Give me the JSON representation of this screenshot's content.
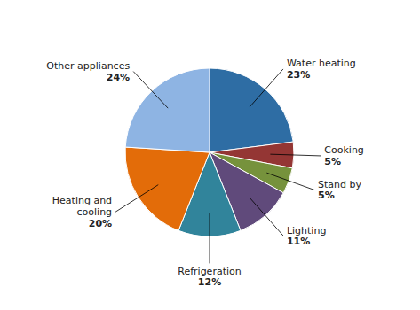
{
  "chart_data": {
    "type": "pie",
    "categories": [
      "Water heating",
      "Cooking",
      "Stand by",
      "Lighting",
      "Refrigeration",
      "Heating and\ncooling",
      "Other appliances"
    ],
    "values": [
      23,
      5,
      5,
      11,
      12,
      20,
      24
    ],
    "value_labels": [
      "23%",
      "5%",
      "5%",
      "11%",
      "12%",
      "20%",
      "24%"
    ],
    "colors": [
      "#2E6DA4",
      "#943634",
      "#76923C",
      "#604A7B",
      "#31849B",
      "#E36C09",
      "#8EB4E3"
    ],
    "data_labels": true
  }
}
